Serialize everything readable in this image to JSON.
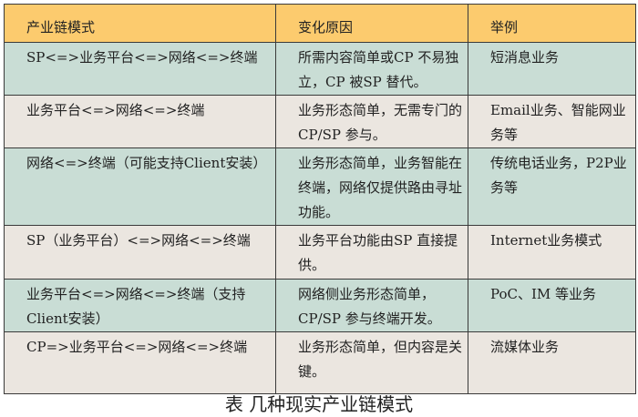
{
  "table": {
    "headers": [
      "产业链模式",
      "变化原因",
      "举例"
    ],
    "rows": [
      [
        "SP<=>业务平台<=>网络<=>终端",
        "所需内容简单或CP 不易独立，CP 被SP 替代。",
        "短消息业务"
      ],
      [
        "业务平台<=>网络<=>终端",
        "业务形态简单，无需专门的CP/SP 参与。",
        "Email业务、智能网业务等"
      ],
      [
        "网络<=>终端（可能支持Client安装）",
        "业务形态简单，业务智能在终端，网络仅提供路由寻址功能。",
        "传统电话业务，P2P业务等"
      ],
      [
        "SP（业务平台）<=>网络<=>终端",
        "业务平台功能由SP 直接提供。",
        "Internet业务模式"
      ],
      [
        "业务平台<=>网络<=>终端（支持Client安装）",
        "网络侧业务形态简单，CP/SP 参与终端开发。",
        "PoC、IM 等业务"
      ],
      [
        "CP=>业务平台<=>网络<=>终端",
        "业务形态简单，但内容是关键。",
        "流媒体业务"
      ]
    ],
    "caption": "表 几种现实产业链模式"
  },
  "colors": {
    "header": "#fccb6e",
    "row_green": "#c9ddd5",
    "row_gray": "#ebe6e0"
  }
}
